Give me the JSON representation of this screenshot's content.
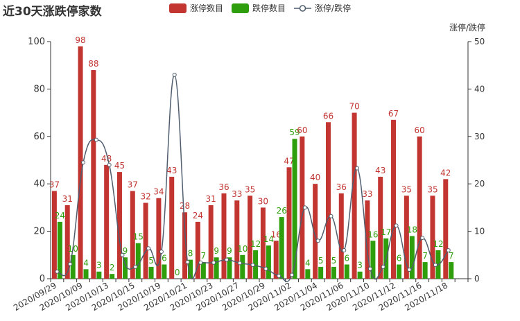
{
  "chart_data": {
    "type": "bar",
    "title": "近30天涨跌停家数",
    "y2label": "涨停/跌停",
    "ylim": [
      0,
      100
    ],
    "y2lim": [
      0,
      50
    ],
    "yticks": [
      0,
      20,
      40,
      60,
      80,
      100
    ],
    "y2ticks": [
      0,
      10,
      20,
      30,
      40,
      50
    ],
    "x_tick_labels": [
      "2020/09/29",
      "2020/10/09",
      "2020/10/13",
      "2020/10/15",
      "2020/10/19",
      "2020/10/21",
      "2020/10/23",
      "2020/10/27",
      "2020/10/29",
      "2020/11/02",
      "2020/11/04",
      "2020/11/06",
      "2020/11/10",
      "2020/11/12",
      "2020/11/16",
      "2020/11/18"
    ],
    "categories": [
      "2020/09/29",
      "2020/09/30",
      "2020/10/09",
      "2020/10/12",
      "2020/10/13",
      "2020/10/14",
      "2020/10/15",
      "2020/10/16",
      "2020/10/19",
      "2020/10/20",
      "2020/10/21",
      "2020/10/22",
      "2020/10/23",
      "2020/10/26",
      "2020/10/27",
      "2020/10/28",
      "2020/10/29",
      "2020/10/30",
      "2020/11/02",
      "2020/11/03",
      "2020/11/04",
      "2020/11/05",
      "2020/11/06",
      "2020/11/09",
      "2020/11/10",
      "2020/11/11",
      "2020/11/12",
      "2020/11/13",
      "2020/11/16",
      "2020/11/17",
      "2020/11/18",
      "2020/11/19"
    ],
    "series": [
      {
        "name": "涨停数目",
        "type": "bar",
        "color": "#c23531",
        "values": [
          37,
          31,
          98,
          88,
          48,
          45,
          37,
          32,
          34,
          43,
          28,
          24,
          31,
          36,
          33,
          35,
          30,
          16,
          47,
          60,
          40,
          66,
          36,
          70,
          33,
          43,
          67,
          35,
          60,
          35,
          42,
          null
        ]
      },
      {
        "name": "跌停数目",
        "type": "bar",
        "color": "#2f9e0c",
        "values": [
          24,
          10,
          4,
          3,
          2,
          9,
          15,
          5,
          6,
          0,
          8,
          7,
          9,
          9,
          10,
          12,
          14,
          26,
          59,
          4,
          5,
          5,
          6,
          3,
          16,
          17,
          6,
          18,
          7,
          12,
          7,
          null
        ]
      },
      {
        "name": "涨停/跌停",
        "type": "line",
        "color": "#4f5d6e",
        "yAxis": "right",
        "values": [
          1.5,
          3.1,
          24.5,
          29.3,
          24.0,
          5.0,
          2.5,
          6.4,
          5.7,
          43,
          3.5,
          3.4,
          3.4,
          4.0,
          3.3,
          2.9,
          2.1,
          0.6,
          0.8,
          15.0,
          8.0,
          13.2,
          6.0,
          23.3,
          2.1,
          2.5,
          11.2,
          1.9,
          8.6,
          2.9,
          6.0,
          null
        ]
      }
    ],
    "data_label_colors": {
      "涨停数目": "#c23531",
      "跌停数目": "#2f9e0c"
    }
  }
}
